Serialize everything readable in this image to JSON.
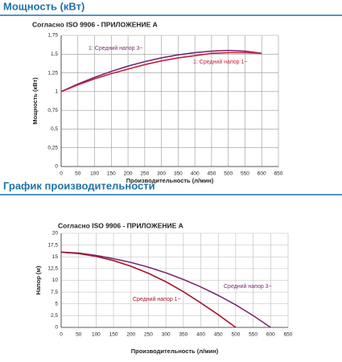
{
  "chart_data": [
    {
      "type": "line",
      "title": "Мощность (кВт)",
      "subtitle": "Согласно ISO 9906 - ПРИЛОЖЕНИЕ А",
      "x_label": "Производительность (л/мин)",
      "y_label": "Мощность (кВт)",
      "xlim": [
        0,
        650
      ],
      "xticks": [
        0,
        50,
        100,
        150,
        200,
        250,
        300,
        350,
        400,
        450,
        500,
        550,
        600,
        650
      ],
      "ylim": [
        0,
        1.75
      ],
      "yticks": [
        0,
        {
          "value": 0.25,
          "label": "0,25"
        },
        {
          "value": 0.5,
          "label": "0,5"
        },
        {
          "value": 0.75,
          "label": "0,75"
        },
        1,
        {
          "value": 1.25,
          "label": "1,25"
        },
        {
          "value": 1.5,
          "label": "1,5"
        },
        {
          "value": 1.75,
          "label": "1,75"
        }
      ],
      "grid": true,
      "x": [
        0,
        50,
        100,
        150,
        200,
        250,
        300,
        350,
        400,
        450,
        500,
        550,
        600
      ],
      "series": [
        {
          "name": "1: Средний напор 3~",
          "color": "#7b2a72",
          "values": [
            1.0,
            1.1,
            1.19,
            1.27,
            1.34,
            1.4,
            1.45,
            1.49,
            1.52,
            1.54,
            1.55,
            1.54,
            1.51
          ]
        },
        {
          "name": "1: Средний напор 1~",
          "color": "#c0223f",
          "values": [
            1.0,
            1.09,
            1.17,
            1.24,
            1.3,
            1.36,
            1.41,
            1.45,
            1.48,
            1.51,
            1.52,
            1.52,
            1.51
          ]
        }
      ]
    },
    {
      "type": "line",
      "title": "График производительности",
      "subtitle": "Согласно ISO 9906 - ПРИЛОЖЕНИЕ А",
      "x_label": "Производительность (л/мин)",
      "y_label": "Напор (м)",
      "xlim": [
        0,
        650
      ],
      "xticks": [
        0,
        50,
        100,
        150,
        200,
        250,
        300,
        350,
        400,
        450,
        500,
        550,
        600,
        650
      ],
      "ylim": [
        0,
        20
      ],
      "yticks": [
        0,
        {
          "value": 2.5,
          "label": "2,5"
        },
        5,
        {
          "value": 7.5,
          "label": "7,5"
        },
        10,
        {
          "value": 12.5,
          "label": "12,5"
        },
        15,
        {
          "value": 17.5,
          "label": "17,5"
        },
        20
      ],
      "grid": true,
      "x": [
        0,
        50,
        100,
        150,
        200,
        250,
        300,
        350,
        400,
        450,
        500,
        550,
        600
      ],
      "series": [
        {
          "name": "Средний напор 3~",
          "color": "#7b2a72",
          "values": [
            16,
            15.8,
            15.3,
            14.6,
            13.8,
            12.8,
            11.6,
            10.2,
            8.6,
            6.8,
            4.8,
            2.5,
            0
          ]
        },
        {
          "name": "Средний напор 1~",
          "color": "#a3162f",
          "values": [
            16,
            15.7,
            15.1,
            14.2,
            13,
            11.5,
            9.7,
            7.6,
            5.2,
            2.7,
            0,
            null,
            null
          ]
        }
      ]
    }
  ]
}
